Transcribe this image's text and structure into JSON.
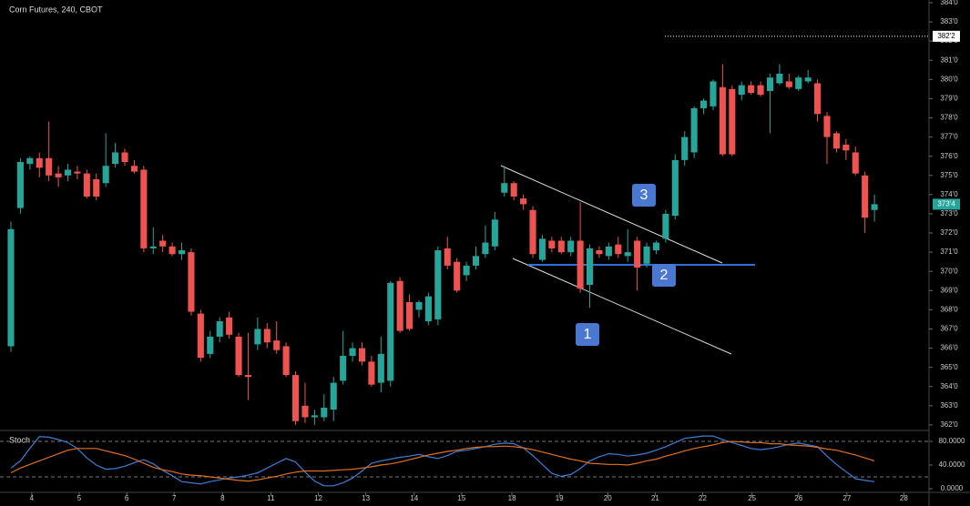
{
  "chart_data": [
    {
      "type": "candlestick",
      "title": "Corn Futures, 240, CBOT",
      "up_color": "#26a69a",
      "down_color": "#ef5350",
      "xlim": [
        -1.15,
        96.75
      ],
      "xticks": [
        {
          "value": 2.2,
          "label": "4"
        },
        {
          "value": 7.2,
          "label": "5"
        },
        {
          "value": 12.2,
          "label": "6"
        },
        {
          "value": 17.2,
          "label": "7"
        },
        {
          "value": 22.3,
          "label": "8"
        },
        {
          "value": 27.4,
          "label": "11"
        },
        {
          "value": 32.4,
          "label": "12"
        },
        {
          "value": 37.4,
          "label": "13"
        },
        {
          "value": 42.5,
          "label": "14"
        },
        {
          "value": 47.5,
          "label": "15"
        },
        {
          "value": 52.8,
          "label": "18"
        },
        {
          "value": 57.8,
          "label": "19"
        },
        {
          "value": 62.9,
          "label": "20"
        },
        {
          "value": 67.9,
          "label": "21"
        },
        {
          "value": 72.9,
          "label": "22"
        },
        {
          "value": 78.1,
          "label": "25"
        },
        {
          "value": 83.0,
          "label": "26"
        },
        {
          "value": 88.1,
          "label": "27"
        },
        {
          "value": 94.1,
          "label": "28"
        }
      ],
      "ylim": [
        361.76,
        384.14
      ],
      "yticks": [
        {
          "value": 362,
          "label": "362'0"
        },
        {
          "value": 363,
          "label": "363'0"
        },
        {
          "value": 364,
          "label": "364'0"
        },
        {
          "value": 365,
          "label": "365'0"
        },
        {
          "value": 366,
          "label": "366'0"
        },
        {
          "value": 367,
          "label": "367'0"
        },
        {
          "value": 368,
          "label": "368'0"
        },
        {
          "value": 369,
          "label": "369'0"
        },
        {
          "value": 370,
          "label": "370'0"
        },
        {
          "value": 371,
          "label": "371'0"
        },
        {
          "value": 372,
          "label": "372'0"
        },
        {
          "value": 373,
          "label": "373'0"
        },
        {
          "value": 374,
          "label": "374'0"
        },
        {
          "value": 375,
          "label": "375'0"
        },
        {
          "value": 376,
          "label": "376'0"
        },
        {
          "value": 377,
          "label": "377'0"
        },
        {
          "value": 378,
          "label": "378'0"
        },
        {
          "value": 379,
          "label": "379'0"
        },
        {
          "value": 380,
          "label": "380'0"
        },
        {
          "value": 381,
          "label": "381'0"
        },
        {
          "value": 382,
          "label": "382'0"
        },
        {
          "value": 383,
          "label": "383'0"
        },
        {
          "value": 384,
          "label": "384'0"
        }
      ],
      "price_line": {
        "value": 382.25,
        "label": "382'2"
      },
      "last_price": {
        "value": 373.5,
        "label": "373'4"
      },
      "annotations": [
        "1",
        "2",
        "3"
      ],
      "candles": [
        [
          366.1,
          372.6,
          365.8,
          372.2
        ],
        [
          373.3,
          375.9,
          373.0,
          375.7
        ],
        [
          375.6,
          376.0,
          375.3,
          375.9
        ],
        [
          375.9,
          376.2,
          374.9,
          375.4
        ],
        [
          375.9,
          377.8,
          374.7,
          375.0
        ],
        [
          375.1,
          375.5,
          374.4,
          374.9
        ],
        [
          375.0,
          375.6,
          374.7,
          375.3
        ],
        [
          375.2,
          375.5,
          374.8,
          375.1
        ],
        [
          375.1,
          375.3,
          373.8,
          373.9
        ],
        [
          374.8,
          375.1,
          373.7,
          373.9
        ],
        [
          374.6,
          377.2,
          374.4,
          375.5
        ],
        [
          375.6,
          376.7,
          375.4,
          376.2
        ],
        [
          376.2,
          376.4,
          375.5,
          375.7
        ],
        [
          375.5,
          375.8,
          375.1,
          375.2
        ],
        [
          375.3,
          375.5,
          371.0,
          371.2
        ],
        [
          371.2,
          372.3,
          370.9,
          371.3
        ],
        [
          371.6,
          371.9,
          371.0,
          371.3
        ],
        [
          371.3,
          371.5,
          370.8,
          370.9
        ],
        [
          370.9,
          371.5,
          370.6,
          371.1
        ],
        [
          371.0,
          371.2,
          367.7,
          367.9
        ],
        [
          367.8,
          368.0,
          365.3,
          365.5
        ],
        [
          365.7,
          366.9,
          365.5,
          366.6
        ],
        [
          366.6,
          367.6,
          366.3,
          367.4
        ],
        [
          367.6,
          367.9,
          366.5,
          366.7
        ],
        [
          366.6,
          366.8,
          364.5,
          364.6
        ],
        [
          364.6,
          366.8,
          363.3,
          364.5
        ],
        [
          366.2,
          367.6,
          365.9,
          367.0
        ],
        [
          367.0,
          367.3,
          366.0,
          366.3
        ],
        [
          366.4,
          367.4,
          365.7,
          365.9
        ],
        [
          366.1,
          366.3,
          364.5,
          364.6
        ],
        [
          364.6,
          364.8,
          362.0,
          362.2
        ],
        [
          363.0,
          364.2,
          362.1,
          362.4
        ],
        [
          362.4,
          362.8,
          362.0,
          362.5
        ],
        [
          362.4,
          363.6,
          362.2,
          362.9
        ],
        [
          362.8,
          364.5,
          362.2,
          364.2
        ],
        [
          364.3,
          366.9,
          364.1,
          365.6
        ],
        [
          365.6,
          366.3,
          365.3,
          366.0
        ],
        [
          366.0,
          366.3,
          365.1,
          365.3
        ],
        [
          365.3,
          365.6,
          364.0,
          364.1
        ],
        [
          364.2,
          366.6,
          363.7,
          365.7
        ],
        [
          364.3,
          369.5,
          364.0,
          369.4
        ],
        [
          369.5,
          369.7,
          366.8,
          366.9
        ],
        [
          368.4,
          368.8,
          366.9,
          367.0
        ],
        [
          368.0,
          368.5,
          367.6,
          368.4
        ],
        [
          367.4,
          368.9,
          367.2,
          368.7
        ],
        [
          367.5,
          371.3,
          367.2,
          371.1
        ],
        [
          371.2,
          371.8,
          370.1,
          370.3
        ],
        [
          370.5,
          370.7,
          368.9,
          369.0
        ],
        [
          369.8,
          370.5,
          369.5,
          370.3
        ],
        [
          370.3,
          371.3,
          370.1,
          370.8
        ],
        [
          370.9,
          372.4,
          370.7,
          371.5
        ],
        [
          371.3,
          373.1,
          371.1,
          372.7
        ],
        [
          374.1,
          375.5,
          373.9,
          374.6
        ],
        [
          374.6,
          374.7,
          373.7,
          373.9
        ],
        [
          373.8,
          374.0,
          373.2,
          373.5
        ],
        [
          373.2,
          373.4,
          370.7,
          370.9
        ],
        [
          370.6,
          371.9,
          370.5,
          371.7
        ],
        [
          371.6,
          371.8,
          371.0,
          371.2
        ],
        [
          371.6,
          371.8,
          370.9,
          371.0
        ],
        [
          371.0,
          371.8,
          370.8,
          371.6
        ],
        [
          371.6,
          373.6,
          368.9,
          369.1
        ],
        [
          369.3,
          371.4,
          368.1,
          371.2
        ],
        [
          371.1,
          371.3,
          370.7,
          370.9
        ],
        [
          370.8,
          371.5,
          370.6,
          371.3
        ],
        [
          371.4,
          371.8,
          370.7,
          370.9
        ],
        [
          370.8,
          372.2,
          370.5,
          371.0
        ],
        [
          371.6,
          371.8,
          369.0,
          370.2
        ],
        [
          370.4,
          371.5,
          370.2,
          371.3
        ],
        [
          371.1,
          371.6,
          370.9,
          371.5
        ],
        [
          371.7,
          373.2,
          371.5,
          373.0
        ],
        [
          372.9,
          376.1,
          372.7,
          375.8
        ],
        [
          375.8,
          377.3,
          375.5,
          377.0
        ],
        [
          376.2,
          378.6,
          375.9,
          378.5
        ],
        [
          378.5,
          379.0,
          378.2,
          378.9
        ],
        [
          378.6,
          380.0,
          378.4,
          379.9
        ],
        [
          379.6,
          380.8,
          376.0,
          376.1
        ],
        [
          379.5,
          379.7,
          376.0,
          376.1
        ],
        [
          379.2,
          379.9,
          378.9,
          379.7
        ],
        [
          379.7,
          379.9,
          379.2,
          379.3
        ],
        [
          379.7,
          379.9,
          379.1,
          379.2
        ],
        [
          379.4,
          380.3,
          377.2,
          380.1
        ],
        [
          379.8,
          380.8,
          379.7,
          380.3
        ],
        [
          379.9,
          380.3,
          379.5,
          379.6
        ],
        [
          379.5,
          380.2,
          379.4,
          380.1
        ],
        [
          379.9,
          380.5,
          379.8,
          380.1
        ],
        [
          379.8,
          380.0,
          377.8,
          378.2
        ],
        [
          378.1,
          378.3,
          375.6,
          377.0
        ],
        [
          377.2,
          377.3,
          376.2,
          376.4
        ],
        [
          376.6,
          376.9,
          375.8,
          376.3
        ],
        [
          376.2,
          376.5,
          375.0,
          375.1
        ],
        [
          375.0,
          375.2,
          372.0,
          372.8
        ],
        [
          373.2,
          374.0,
          372.6,
          373.5
        ]
      ]
    },
    {
      "type": "line",
      "title": "Stoch",
      "ylim": [
        -4.6,
        96.9
      ],
      "yticks": [
        {
          "value": 80,
          "label": "80.0000"
        },
        {
          "value": 40,
          "label": "40.0000"
        },
        {
          "value": 0,
          "label": "0.0000"
        }
      ],
      "bands": [
        20,
        80
      ],
      "series": [
        {
          "color": "#3a7fd8",
          "values": [
            35,
            47,
            68,
            88,
            87,
            83,
            78,
            68,
            52,
            40,
            33,
            34,
            38,
            44,
            49,
            42,
            31,
            22,
            12,
            10,
            8,
            12,
            15,
            18,
            20,
            23,
            27,
            35,
            43,
            51,
            45,
            28,
            13,
            5,
            5,
            10,
            18,
            30,
            43,
            47,
            50,
            53,
            55,
            58,
            54,
            51,
            56,
            63,
            65,
            68,
            71,
            75,
            77,
            76,
            69,
            56,
            41,
            26,
            21,
            24,
            34,
            47,
            54,
            59,
            58,
            55,
            57,
            60,
            65,
            71,
            78,
            85,
            87,
            89,
            89,
            83,
            78,
            73,
            68,
            66,
            68,
            71,
            75,
            77,
            74,
            71,
            55,
            41,
            29,
            17,
            14,
            12
          ]
        },
        {
          "color": "#e0701e",
          "values": [
            27,
            35,
            41,
            47,
            53,
            59,
            65,
            68,
            68,
            68,
            64,
            60,
            56,
            50,
            43,
            36,
            32,
            29,
            25,
            23,
            22,
            20,
            18,
            16,
            14,
            13,
            15,
            18,
            21,
            25,
            28,
            30,
            30,
            30,
            31,
            32,
            33,
            35,
            37,
            40,
            42,
            45,
            49,
            53,
            57,
            60,
            63,
            65,
            68,
            70,
            71,
            71,
            72,
            71,
            69,
            66,
            62,
            58,
            54,
            50,
            47,
            43,
            42,
            41,
            41,
            40,
            43,
            47,
            50,
            55,
            59,
            64,
            68,
            71,
            74,
            78,
            80,
            79,
            78,
            78,
            76,
            76,
            74,
            73,
            72,
            70,
            67,
            65,
            61,
            57,
            52,
            47
          ]
        }
      ]
    }
  ]
}
